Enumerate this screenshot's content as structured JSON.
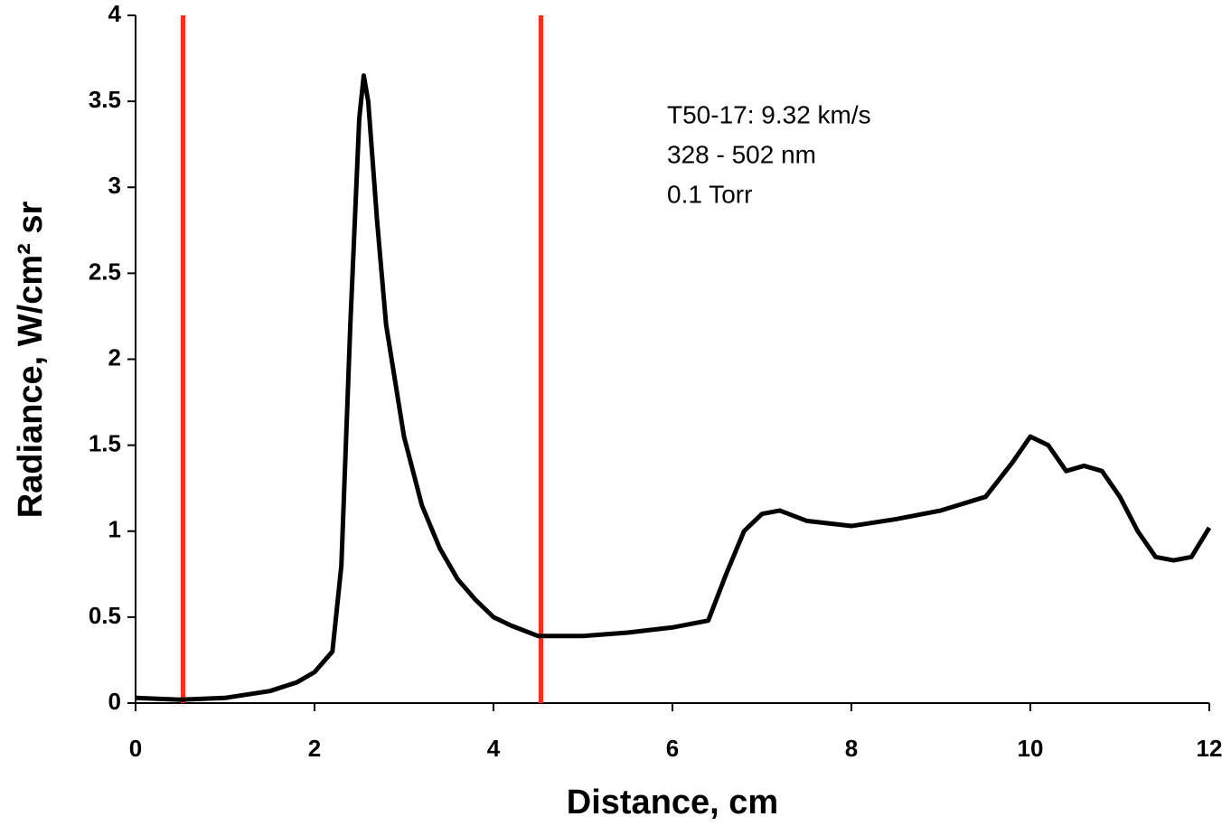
{
  "chart_data": {
    "type": "line",
    "xlabel": "Distance, cm",
    "ylabel": "Radiance, W/cm² sr",
    "annotations": [
      "T50-17: 9.32 km/s",
      "328 - 502 nm",
      "0.1 Torr"
    ],
    "x": [
      0,
      0.5,
      1.0,
      1.5,
      1.8,
      2.0,
      2.2,
      2.3,
      2.4,
      2.5,
      2.55,
      2.6,
      2.7,
      2.8,
      3.0,
      3.2,
      3.4,
      3.6,
      3.8,
      4.0,
      4.2,
      4.5,
      5.0,
      5.5,
      6.0,
      6.4,
      6.6,
      6.8,
      7.0,
      7.2,
      7.5,
      8.0,
      8.5,
      9.0,
      9.5,
      9.8,
      10.0,
      10.2,
      10.4,
      10.6,
      10.8,
      11.0,
      11.2,
      11.4,
      11.6,
      11.8,
      12.0
    ],
    "series": [
      {
        "color": "#000000",
        "values": [
          0.03,
          0.02,
          0.03,
          0.07,
          0.12,
          0.18,
          0.3,
          0.8,
          2.2,
          3.4,
          3.65,
          3.5,
          2.8,
          2.2,
          1.55,
          1.15,
          0.9,
          0.72,
          0.6,
          0.5,
          0.45,
          0.39,
          0.39,
          0.41,
          0.44,
          0.48,
          0.75,
          1.0,
          1.1,
          1.12,
          1.06,
          1.03,
          1.07,
          1.12,
          1.2,
          1.4,
          1.55,
          1.5,
          1.35,
          1.38,
          1.35,
          1.2,
          1.0,
          0.85,
          0.83,
          0.85,
          1.02
        ]
      }
    ],
    "vlines": [
      {
        "x": 0.53,
        "color": "#ff2a1a"
      },
      {
        "x": 4.53,
        "color": "#ff2a1a"
      }
    ],
    "xlim": [
      0,
      12
    ],
    "xticks": [
      0,
      2,
      4,
      6,
      8,
      10,
      12
    ],
    "ylim": [
      0,
      4
    ],
    "yticks": [
      0,
      0.5,
      1,
      1.5,
      2,
      2.5,
      3,
      3.5,
      4
    ],
    "grid": false
  }
}
